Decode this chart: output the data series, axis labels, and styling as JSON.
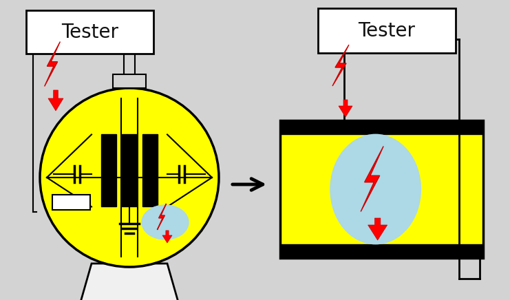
{
  "bg_color": "#d3d3d3",
  "white": "#ffffff",
  "yellow": "#ffff00",
  "black": "#000000",
  "blue": "#add8e6",
  "red": "#ff0000",
  "dark_red": "#cc0000",
  "gray_stand": "#f0f0f0",
  "tester_text": "Tester",
  "figsize": [
    7.41,
    4.36
  ],
  "dpi": 100
}
